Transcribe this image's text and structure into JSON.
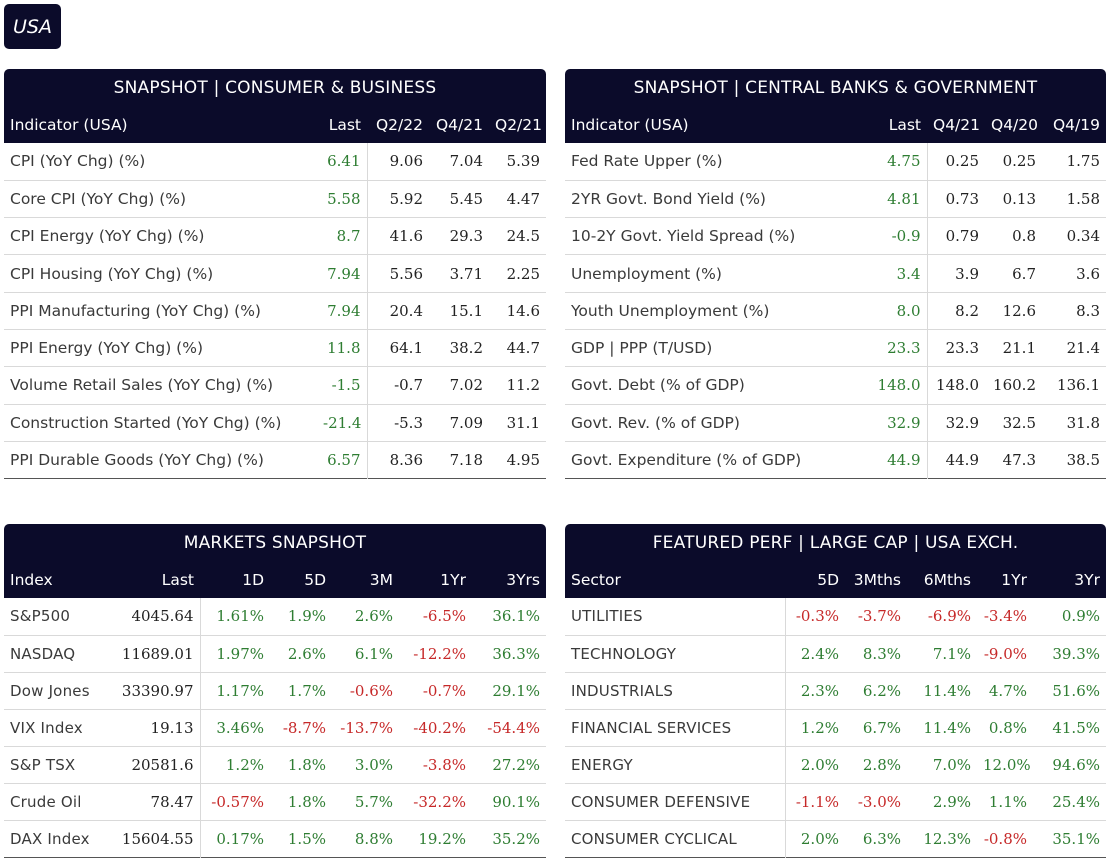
{
  "country": "USA",
  "colors": {
    "header_bg": "#0b0b2a",
    "positive": "#2e7d32",
    "negative": "#c62828"
  },
  "consumer_business": {
    "title": "SNAPSHOT | CONSUMER & BUSINESS",
    "columns": [
      "Indicator (USA)",
      "Last",
      "Q2/22",
      "Q4/21",
      "Q2/21"
    ],
    "rows": [
      {
        "label": "CPI (YoY Chg) (%)",
        "values": [
          "6.41",
          "9.06",
          "7.04",
          "5.39"
        ]
      },
      {
        "label": "Core CPI (YoY Chg) (%)",
        "values": [
          "5.58",
          "5.92",
          "5.45",
          "4.47"
        ]
      },
      {
        "label": "CPI Energy (YoY Chg) (%)",
        "values": [
          "8.7",
          "41.6",
          "29.3",
          "24.5"
        ]
      },
      {
        "label": "CPI Housing (YoY Chg) (%)",
        "values": [
          "7.94",
          "5.56",
          "3.71",
          "2.25"
        ]
      },
      {
        "label": "PPI Manufacturing (YoY Chg) (%)",
        "values": [
          "7.94",
          "20.4",
          "15.1",
          "14.6"
        ]
      },
      {
        "label": "PPI Energy (YoY Chg) (%)",
        "values": [
          "11.8",
          "64.1",
          "38.2",
          "44.7"
        ]
      },
      {
        "label": "Volume Retail Sales (YoY Chg) (%)",
        "values": [
          "-1.5",
          "-0.7",
          "7.02",
          "11.2"
        ]
      },
      {
        "label": "Construction Started (YoY Chg) (%)",
        "values": [
          "-21.4",
          "-5.3",
          "7.09",
          "31.1"
        ]
      },
      {
        "label": "PPI Durable Goods (YoY Chg) (%)",
        "values": [
          "6.57",
          "8.36",
          "7.18",
          "4.95"
        ]
      }
    ]
  },
  "central_banks": {
    "title": "SNAPSHOT | CENTRAL BANKS & GOVERNMENT",
    "columns": [
      "Indicator (USA)",
      "Last",
      "Q4/21",
      "Q4/20",
      "Q4/19"
    ],
    "rows": [
      {
        "label": "Fed Rate Upper (%)",
        "values": [
          "4.75",
          "0.25",
          "0.25",
          "1.75"
        ]
      },
      {
        "label": "2YR Govt. Bond Yield (%)",
        "values": [
          "4.81",
          "0.73",
          "0.13",
          "1.58"
        ]
      },
      {
        "label": "10-2Y Govt. Yield Spread (%)",
        "values": [
          "-0.9",
          "0.79",
          "0.8",
          "0.34"
        ]
      },
      {
        "label": "Unemployment (%)",
        "values": [
          "3.4",
          "3.9",
          "6.7",
          "3.6"
        ]
      },
      {
        "label": "Youth Unemployment (%)",
        "values": [
          "8.0",
          "8.2",
          "12.6",
          "8.3"
        ]
      },
      {
        "label": "GDP | PPP (T/USD)",
        "values": [
          "23.3",
          "23.3",
          "21.1",
          "21.4"
        ]
      },
      {
        "label": "Govt. Debt (% of GDP)",
        "values": [
          "148.0",
          "148.0",
          "160.2",
          "136.1"
        ]
      },
      {
        "label": "Govt. Rev. (% of GDP)",
        "values": [
          "32.9",
          "32.9",
          "32.5",
          "31.8"
        ]
      },
      {
        "label": "Govt. Expenditure (% of GDP)",
        "values": [
          "44.9",
          "44.9",
          "47.3",
          "38.5"
        ]
      }
    ]
  },
  "markets": {
    "title": "MARKETS SNAPSHOT",
    "columns": [
      "Index",
      "Last",
      "1D",
      "5D",
      "3M",
      "1Yr",
      "3Yrs"
    ],
    "rows": [
      {
        "label": "S&P500",
        "values": [
          "4045.64",
          "1.61%",
          "1.9%",
          "2.6%",
          "-6.5%",
          "36.1%"
        ]
      },
      {
        "label": "NASDAQ",
        "values": [
          "11689.01",
          "1.97%",
          "2.6%",
          "6.1%",
          "-12.2%",
          "36.3%"
        ]
      },
      {
        "label": "Dow Jones",
        "values": [
          "33390.97",
          "1.17%",
          "1.7%",
          "-0.6%",
          "-0.7%",
          "29.1%"
        ]
      },
      {
        "label": "VIX Index",
        "values": [
          "19.13",
          "3.46%",
          "-8.7%",
          "-13.7%",
          "-40.2%",
          "-54.4%"
        ]
      },
      {
        "label": "S&P TSX",
        "values": [
          "20581.6",
          "1.2%",
          "1.8%",
          "3.0%",
          "-3.8%",
          "27.2%"
        ]
      },
      {
        "label": "Crude Oil",
        "values": [
          "78.47",
          "-0.57%",
          "1.8%",
          "5.7%",
          "-32.2%",
          "90.1%"
        ]
      },
      {
        "label": "DAX Index",
        "values": [
          "15604.55",
          "0.17%",
          "1.5%",
          "8.8%",
          "19.2%",
          "35.2%"
        ]
      }
    ]
  },
  "sectors": {
    "title": "FEATURED PERF | LARGE CAP | USA EXCH.",
    "columns": [
      "Sector",
      "5D",
      "3Mths",
      "6Mths",
      "1Yr",
      "3Yr"
    ],
    "rows": [
      {
        "label": "UTILITIES",
        "values": [
          "-0.3%",
          "-3.7%",
          "-6.9%",
          "-3.4%",
          "0.9%"
        ]
      },
      {
        "label": "TECHNOLOGY",
        "values": [
          "2.4%",
          "8.3%",
          "7.1%",
          "-9.0%",
          "39.3%"
        ]
      },
      {
        "label": "INDUSTRIALS",
        "values": [
          "2.3%",
          "6.2%",
          "11.4%",
          "4.7%",
          "51.6%"
        ]
      },
      {
        "label": "FINANCIAL SERVICES",
        "values": [
          "1.2%",
          "6.7%",
          "11.4%",
          "0.8%",
          "41.5%"
        ]
      },
      {
        "label": "ENERGY",
        "values": [
          "2.0%",
          "2.8%",
          "7.0%",
          "12.0%",
          "94.6%"
        ]
      },
      {
        "label": "CONSUMER DEFENSIVE",
        "values": [
          "-1.1%",
          "-3.0%",
          "2.9%",
          "1.1%",
          "25.4%"
        ]
      },
      {
        "label": "CONSUMER CYCLICAL",
        "values": [
          "2.0%",
          "6.3%",
          "12.3%",
          "-0.8%",
          "35.1%"
        ]
      }
    ]
  }
}
